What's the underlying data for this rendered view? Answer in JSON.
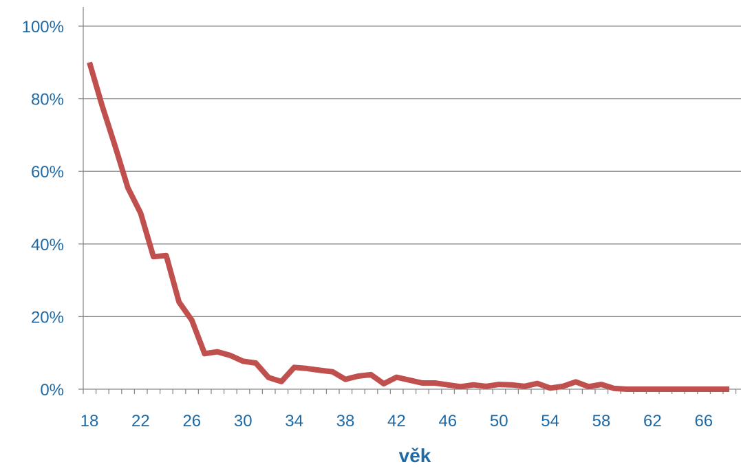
{
  "chart_data": {
    "type": "line",
    "title": "",
    "xlabel": "věk",
    "ylabel": "",
    "xlim": [
      18,
      70
    ],
    "ylim": [
      0,
      100
    ],
    "grid": true,
    "line_color": "#c0504d",
    "axis_text_color": "#1f6aa5",
    "x_ticks": [
      "18",
      "22",
      "26",
      "30",
      "34",
      "38",
      "42",
      "46",
      "50",
      "54",
      "58",
      "62",
      "66"
    ],
    "y_ticks": [
      "0%",
      "20%",
      "40%",
      "60%",
      "80%",
      "100%"
    ],
    "series": [
      {
        "name": "",
        "x": [
          18,
          19,
          20,
          21,
          22,
          23,
          24,
          25,
          26,
          27,
          28,
          29,
          30,
          31,
          32,
          33,
          34,
          35,
          36,
          37,
          38,
          39,
          40,
          41,
          42,
          43,
          44,
          45,
          46,
          47,
          48,
          49,
          50,
          51,
          52,
          53,
          54,
          55,
          56,
          57,
          58,
          59,
          60,
          61,
          62,
          63,
          64,
          65,
          66,
          67,
          68,
          69,
          70
        ],
        "values": [
          90,
          78,
          67,
          55.5,
          48.5,
          36.5,
          36.8,
          24,
          19,
          9.8,
          10.3,
          9.3,
          7.7,
          7.2,
          3.2,
          2.1,
          6,
          5.7,
          5.2,
          4.8,
          2.7,
          3.6,
          4,
          1.5,
          3.3,
          2.5,
          1.7,
          1.7,
          1.2,
          0.7,
          1.2,
          0.8,
          1.3,
          1.2,
          0.8,
          1.6,
          0.3,
          0.8,
          2,
          0.7,
          1.3,
          0.2,
          0,
          0,
          0,
          0,
          0,
          0,
          0,
          0,
          0,
          0,
          0
        ]
      }
    ]
  }
}
